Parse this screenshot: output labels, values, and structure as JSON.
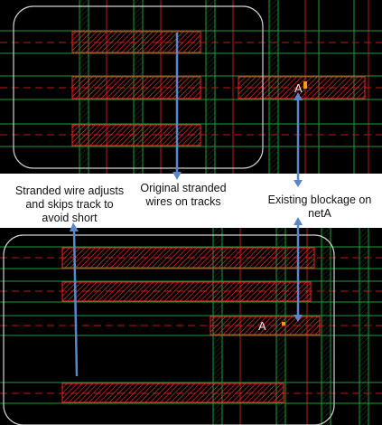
{
  "colors": {
    "background": "#000000",
    "band": "#ffffff",
    "wire": "#ff2020",
    "wire_fill": "#7a1010",
    "track_green": "#1f9a3a",
    "track_red": "#c01818",
    "rounded_box": "#d0d0d0",
    "arrow": "#5b86cc",
    "pin_dot": "#ff9900"
  },
  "labels": {
    "stranded_wire": [
      "Stranded wire adjusts",
      "and skips track to",
      "avoid short"
    ],
    "original_wires": [
      "Original stranded",
      "wires on tracks"
    ],
    "existing_blockage": [
      "Existing blockage on",
      "netA"
    ]
  },
  "pins": {
    "top": "A",
    "bottom": "A"
  }
}
